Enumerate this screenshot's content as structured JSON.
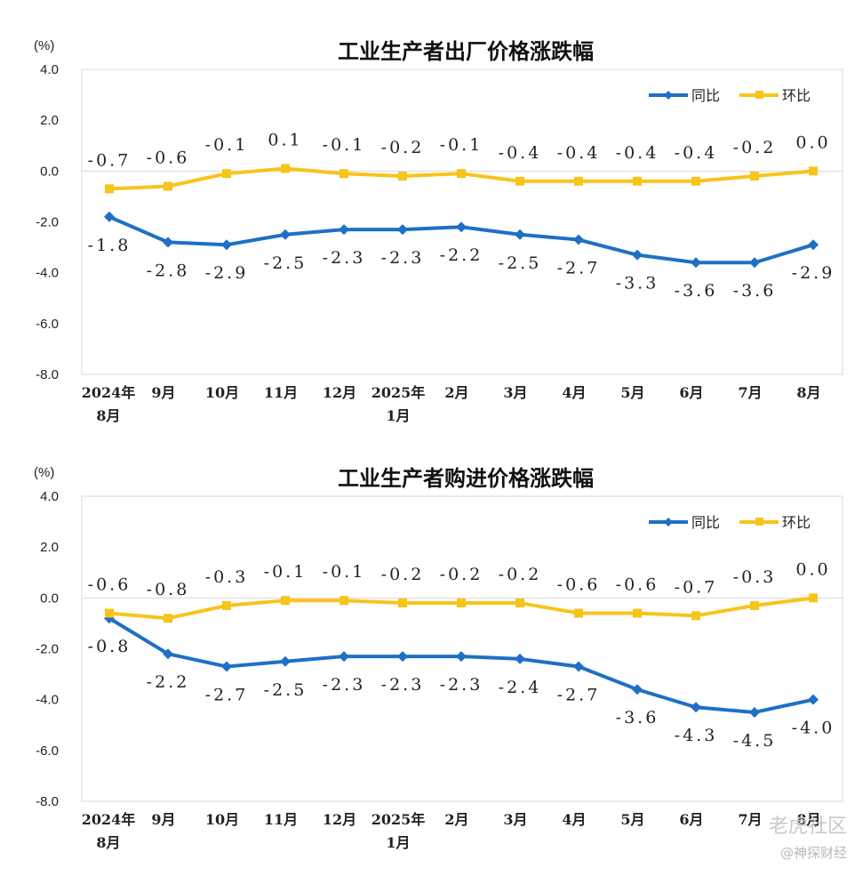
{
  "watermark": {
    "line1": "老虎社区",
    "line2": "@神探财经"
  },
  "chart_data": [
    {
      "type": "line",
      "title": "工业生产者出厂价格涨跌幅",
      "ylabel": "(%)",
      "ylim": [
        -8.0,
        4.0
      ],
      "yticks": [
        "4.0",
        "2.0",
        "0.0",
        "-2.0",
        "-4.0",
        "-6.0",
        "-8.0"
      ],
      "yticks_values": [
        4,
        2,
        0,
        -2,
        -4,
        -6,
        -8
      ],
      "categories": [
        [
          "2024年",
          "8月"
        ],
        [
          "9月"
        ],
        [
          "10月"
        ],
        [
          "11月"
        ],
        [
          "12月"
        ],
        [
          "2025年",
          "1月"
        ],
        [
          "2月"
        ],
        [
          "3月"
        ],
        [
          "4月"
        ],
        [
          "5月"
        ],
        [
          "6月"
        ],
        [
          "7月"
        ],
        [
          "8月"
        ]
      ],
      "legend_position": "top-right",
      "series": [
        {
          "name": "同比",
          "color": "#1f6fc5",
          "marker": "diamond",
          "values": [
            -1.8,
            -2.8,
            -2.9,
            -2.5,
            -2.3,
            -2.3,
            -2.2,
            -2.5,
            -2.7,
            -3.3,
            -3.6,
            -3.6,
            -2.9
          ],
          "labels": [
            "-1.8",
            "-2.8",
            "-2.9",
            "-2.5",
            "-2.3",
            "-2.3",
            "-2.2",
            "-2.5",
            "-2.7",
            "-3.3",
            "-3.6",
            "-3.6",
            "-2.9"
          ],
          "label_position": "below"
        },
        {
          "name": "环比",
          "color": "#f7c41b",
          "marker": "square",
          "values": [
            -0.7,
            -0.6,
            -0.1,
            0.1,
            -0.1,
            -0.2,
            -0.1,
            -0.4,
            -0.4,
            -0.4,
            -0.4,
            -0.2,
            0.0
          ],
          "labels": [
            "-0.7",
            "-0.6",
            "-0.1",
            "0.1",
            "-0.1",
            "-0.2",
            "-0.1",
            "-0.4",
            "-0.4",
            "-0.4",
            "-0.4",
            "-0.2",
            "0.0"
          ],
          "label_position": "above"
        }
      ]
    },
    {
      "type": "line",
      "title": "工业生产者购进价格涨跌幅",
      "ylabel": "(%)",
      "ylim": [
        -8.0,
        4.0
      ],
      "yticks": [
        "4.0",
        "2.0",
        "0.0",
        "-2.0",
        "-4.0",
        "-6.0",
        "-8.0"
      ],
      "yticks_values": [
        4,
        2,
        0,
        -2,
        -4,
        -6,
        -8
      ],
      "categories": [
        [
          "2024年",
          "8月"
        ],
        [
          "9月"
        ],
        [
          "10月"
        ],
        [
          "11月"
        ],
        [
          "12月"
        ],
        [
          "2025年",
          "1月"
        ],
        [
          "2月"
        ],
        [
          "3月"
        ],
        [
          "4月"
        ],
        [
          "5月"
        ],
        [
          "6月"
        ],
        [
          "7月"
        ],
        [
          "8月"
        ]
      ],
      "legend_position": "top-right",
      "series": [
        {
          "name": "同比",
          "color": "#1f6fc5",
          "marker": "diamond",
          "values": [
            -0.8,
            -2.2,
            -2.7,
            -2.5,
            -2.3,
            -2.3,
            -2.3,
            -2.4,
            -2.7,
            -3.6,
            -4.3,
            -4.5,
            -4.0
          ],
          "labels": [
            "-0.8",
            "-2.2",
            "-2.7",
            "-2.5",
            "-2.3",
            "-2.3",
            "-2.3",
            "-2.4",
            "-2.7",
            "-3.6",
            "-4.3",
            "-4.5",
            "-4.0"
          ],
          "label_position": "below"
        },
        {
          "name": "环比",
          "color": "#f7c41b",
          "marker": "square",
          "values": [
            -0.6,
            -0.8,
            -0.3,
            -0.1,
            -0.1,
            -0.2,
            -0.2,
            -0.2,
            -0.6,
            -0.6,
            -0.7,
            -0.3,
            0.0
          ],
          "labels": [
            "-0.6",
            "-0.8",
            "-0.3",
            "-0.1",
            "-0.1",
            "-0.2",
            "-0.2",
            "-0.2",
            "-0.6",
            "-0.6",
            "-0.7",
            "-0.3",
            "0.0"
          ],
          "label_position": "above"
        }
      ]
    }
  ]
}
